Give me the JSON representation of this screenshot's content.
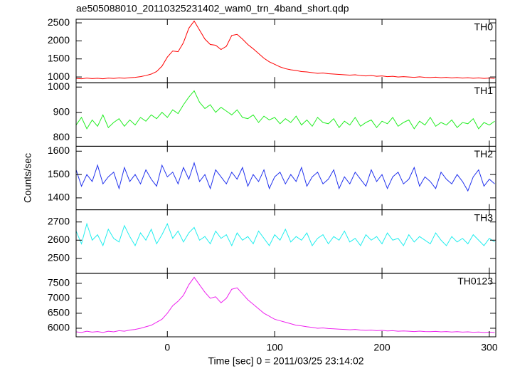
{
  "chart_data": [
    {
      "type": "line",
      "title": "ae505088010_20110325231402_wam0_trn_4band_short.qdp",
      "x": [
        -85,
        -80,
        -75,
        -70,
        -65,
        -60,
        -55,
        -50,
        -45,
        -40,
        -35,
        -30,
        -25,
        -20,
        -15,
        -10,
        -5,
        0,
        5,
        10,
        15,
        20,
        25,
        30,
        35,
        40,
        45,
        50,
        55,
        60,
        65,
        70,
        75,
        80,
        85,
        90,
        95,
        100,
        105,
        110,
        115,
        120,
        125,
        130,
        135,
        140,
        145,
        150,
        155,
        160,
        165,
        170,
        175,
        180,
        185,
        190,
        195,
        200,
        205,
        210,
        215,
        220,
        225,
        230,
        235,
        240,
        245,
        250,
        255,
        260,
        265,
        270,
        275,
        280,
        285,
        290,
        295,
        300,
        305
      ],
      "series": [
        {
          "name": "TH0",
          "color": "#ff0000",
          "values": [
            960,
            950,
            970,
            955,
            965,
            950,
            970,
            960,
            975,
            965,
            980,
            990,
            1010,
            1040,
            1080,
            1150,
            1300,
            1550,
            1720,
            1700,
            1950,
            2350,
            2550,
            2300,
            2050,
            1900,
            1880,
            1760,
            1850,
            2150,
            2180,
            2050,
            1900,
            1780,
            1650,
            1520,
            1420,
            1350,
            1280,
            1230,
            1200,
            1180,
            1150,
            1140,
            1120,
            1100,
            1110,
            1090,
            1080,
            1070,
            1060,
            1050,
            1060,
            1040,
            1030,
            1040,
            1020,
            1030,
            1010,
            1020,
            1000,
            1010,
            1000,
            990,
            1005,
            990,
            985,
            995,
            980,
            990,
            975,
            985,
            970,
            980,
            965,
            975,
            960,
            970,
            960
          ]
        }
      ],
      "xlim": [
        -85,
        306
      ],
      "xticks": [
        0,
        100,
        200,
        300
      ],
      "ylim": [
        840,
        2600
      ],
      "yticks": [
        1000,
        1500,
        2000,
        2500
      ]
    },
    {
      "type": "line",
      "x": [
        -85,
        -80,
        -75,
        -70,
        -65,
        -60,
        -55,
        -50,
        -45,
        -40,
        -35,
        -30,
        -25,
        -20,
        -15,
        -10,
        -5,
        0,
        5,
        10,
        15,
        20,
        25,
        30,
        35,
        40,
        45,
        50,
        55,
        60,
        65,
        70,
        75,
        80,
        85,
        90,
        95,
        100,
        105,
        110,
        115,
        120,
        125,
        130,
        135,
        140,
        145,
        150,
        155,
        160,
        165,
        170,
        175,
        180,
        185,
        190,
        195,
        200,
        205,
        210,
        215,
        220,
        225,
        230,
        235,
        240,
        245,
        250,
        255,
        260,
        265,
        270,
        275,
        280,
        285,
        290,
        295,
        300,
        305
      ],
      "series": [
        {
          "name": "TH1",
          "color": "#22ee22",
          "values": [
            850,
            880,
            835,
            870,
            845,
            890,
            840,
            860,
            875,
            845,
            870,
            850,
            880,
            865,
            890,
            875,
            900,
            880,
            910,
            895,
            930,
            960,
            985,
            940,
            915,
            930,
            900,
            920,
            905,
            890,
            910,
            880,
            875,
            890,
            860,
            885,
            870,
            880,
            855,
            875,
            860,
            885,
            850,
            870,
            845,
            880,
            860,
            855,
            875,
            840,
            865,
            850,
            880,
            845,
            860,
            870,
            840,
            865,
            855,
            880,
            845,
            860,
            870,
            835,
            865,
            850,
            880,
            845,
            860,
            850,
            870,
            840,
            860,
            855,
            875,
            835,
            860,
            850,
            865
          ]
        }
      ],
      "xlim": [
        -85,
        306
      ],
      "xticks": [
        0,
        100,
        200,
        300
      ],
      "ylim": [
        766,
        1017
      ],
      "yticks": [
        800,
        900,
        1000
      ]
    },
    {
      "type": "line",
      "ylabel": "Counts/sec",
      "x": [
        -85,
        -80,
        -75,
        -70,
        -65,
        -60,
        -55,
        -50,
        -45,
        -40,
        -35,
        -30,
        -25,
        -20,
        -15,
        -10,
        -5,
        0,
        5,
        10,
        15,
        20,
        25,
        30,
        35,
        40,
        45,
        50,
        55,
        60,
        65,
        70,
        75,
        80,
        85,
        90,
        95,
        100,
        105,
        110,
        115,
        120,
        125,
        130,
        135,
        140,
        145,
        150,
        155,
        160,
        165,
        170,
        175,
        180,
        185,
        190,
        195,
        200,
        205,
        210,
        215,
        220,
        225,
        230,
        235,
        240,
        245,
        250,
        255,
        260,
        265,
        270,
        275,
        280,
        285,
        290,
        295,
        300,
        305
      ],
      "series": [
        {
          "name": "TH2",
          "color": "#2233ee",
          "values": [
            1520,
            1450,
            1500,
            1470,
            1540,
            1460,
            1490,
            1510,
            1440,
            1530,
            1470,
            1500,
            1460,
            1520,
            1480,
            1450,
            1540,
            1490,
            1510,
            1460,
            1530,
            1480,
            1550,
            1470,
            1500,
            1440,
            1520,
            1490,
            1460,
            1510,
            1480,
            1530,
            1450,
            1500,
            1470,
            1520,
            1440,
            1490,
            1510,
            1460,
            1500,
            1470,
            1530,
            1450,
            1490,
            1510,
            1460,
            1480,
            1520,
            1440,
            1490,
            1460,
            1510,
            1480,
            1450,
            1520,
            1470,
            1500,
            1440,
            1490,
            1510,
            1460,
            1480,
            1530,
            1450,
            1490,
            1470,
            1440,
            1510,
            1480,
            1460,
            1500,
            1470,
            1430,
            1490,
            1520,
            1450,
            1480,
            1460
          ]
        }
      ],
      "xlim": [
        -85,
        306
      ],
      "xticks": [
        0,
        100,
        200,
        300
      ],
      "ylim": [
        1349,
        1621
      ],
      "yticks": [
        1400,
        1500,
        1600
      ]
    },
    {
      "type": "line",
      "x": [
        -85,
        -80,
        -75,
        -70,
        -65,
        -60,
        -55,
        -50,
        -45,
        -40,
        -35,
        -30,
        -25,
        -20,
        -15,
        -10,
        -5,
        0,
        5,
        10,
        15,
        20,
        25,
        30,
        35,
        40,
        45,
        50,
        55,
        60,
        65,
        70,
        75,
        80,
        85,
        90,
        95,
        100,
        105,
        110,
        115,
        120,
        125,
        130,
        135,
        140,
        145,
        150,
        155,
        160,
        165,
        170,
        175,
        180,
        185,
        190,
        195,
        200,
        205,
        210,
        215,
        220,
        225,
        230,
        235,
        240,
        245,
        250,
        255,
        260,
        265,
        270,
        275,
        280,
        285,
        290,
        295,
        300,
        305
      ],
      "series": [
        {
          "name": "TH3",
          "color": "#22eeee",
          "values": [
            2650,
            2580,
            2690,
            2600,
            2630,
            2570,
            2660,
            2610,
            2590,
            2680,
            2620,
            2570,
            2640,
            2600,
            2660,
            2580,
            2630,
            2690,
            2610,
            2650,
            2590,
            2640,
            2670,
            2600,
            2620,
            2580,
            2650,
            2610,
            2630,
            2570,
            2640,
            2600,
            2620,
            2580,
            2650,
            2610,
            2570,
            2630,
            2600,
            2660,
            2590,
            2620,
            2600,
            2640,
            2570,
            2610,
            2630,
            2580,
            2620,
            2600,
            2650,
            2590,
            2610,
            2570,
            2630,
            2600,
            2620,
            2580,
            2640,
            2600,
            2610,
            2570,
            2630,
            2590,
            2620,
            2600,
            2580,
            2640,
            2600,
            2570,
            2620,
            2590,
            2610,
            2580,
            2630,
            2600,
            2570,
            2610,
            2590
          ]
        }
      ],
      "xlim": [
        -85,
        306
      ],
      "xticks": [
        0,
        100,
        200,
        300
      ],
      "ylim": [
        2418,
        2767
      ],
      "yticks": [
        2500,
        2600,
        2700
      ]
    },
    {
      "type": "line",
      "xlabel": "Time [sec] 0 = 2011/03/25 23:14:02",
      "x": [
        -85,
        -80,
        -75,
        -70,
        -65,
        -60,
        -55,
        -50,
        -45,
        -40,
        -35,
        -30,
        -25,
        -20,
        -15,
        -10,
        -5,
        0,
        5,
        10,
        15,
        20,
        25,
        30,
        35,
        40,
        45,
        50,
        55,
        60,
        65,
        70,
        75,
        80,
        85,
        90,
        95,
        100,
        105,
        110,
        115,
        120,
        125,
        130,
        135,
        140,
        145,
        150,
        155,
        160,
        165,
        170,
        175,
        180,
        185,
        190,
        195,
        200,
        205,
        210,
        215,
        220,
        225,
        230,
        235,
        240,
        245,
        250,
        255,
        260,
        265,
        270,
        275,
        280,
        285,
        290,
        295,
        300,
        305
      ],
      "series": [
        {
          "name": "TH0123",
          "color": "#ee22ee",
          "values": [
            5880,
            5860,
            5900,
            5870,
            5890,
            5860,
            5900,
            5880,
            5920,
            5900,
            5940,
            5960,
            6000,
            6050,
            6100,
            6200,
            6300,
            6500,
            6750,
            6900,
            7100,
            7450,
            7700,
            7450,
            7200,
            7000,
            7050,
            6850,
            7000,
            7300,
            7350,
            7150,
            6950,
            6800,
            6650,
            6500,
            6400,
            6300,
            6250,
            6200,
            6150,
            6100,
            6080,
            6050,
            6030,
            6000,
            6010,
            5990,
            5980,
            5970,
            5960,
            5950,
            5960,
            5940,
            5930,
            5940,
            5920,
            5930,
            5910,
            5920,
            5900,
            5910,
            5900,
            5890,
            5905,
            5890,
            5885,
            5895,
            5880,
            5890,
            5875,
            5885,
            5870,
            5880,
            5865,
            5875,
            5860,
            5870,
            5860
          ]
        }
      ],
      "xlim": [
        -85,
        306
      ],
      "xticks": [
        0,
        100,
        200,
        300
      ],
      "ylim": [
        5714,
        7833
      ],
      "yticks": [
        6000,
        6500,
        7000,
        7500
      ]
    }
  ]
}
